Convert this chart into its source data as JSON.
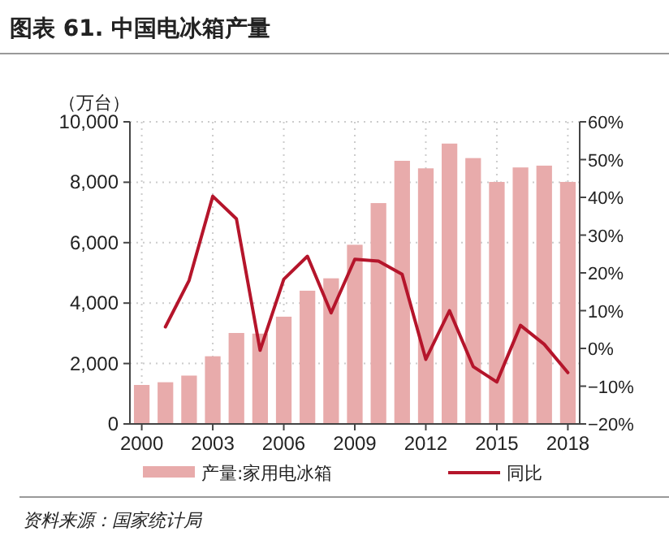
{
  "chart_data": {
    "type": "bar",
    "title": "图表 61. 中国电冰箱产量",
    "ylabel": "（万台）",
    "categories": [
      "2000",
      null,
      null,
      "2003",
      null,
      null,
      "2006",
      null,
      null,
      "2009",
      null,
      null,
      "2012",
      null,
      null,
      "2015",
      null,
      null,
      "2018"
    ],
    "series": [
      {
        "name": "产量:家用电冰箱",
        "color": "#e8abab",
        "values": [
          1290,
          1380,
          1600,
          2240,
          3010,
          2990,
          3550,
          4410,
          4820,
          5930,
          7310,
          8710,
          8460,
          9280,
          8800,
          8010,
          8490,
          8550,
          8010
        ]
      },
      {
        "name": "同比",
        "type": "line",
        "axis": "y2",
        "color": "#b5152b",
        "values": [
          null,
          5.7,
          18.0,
          40.3,
          34.3,
          -0.5,
          18.3,
          24.4,
          9.4,
          23.6,
          23.1,
          19.6,
          -2.9,
          10.0,
          -4.8,
          -8.9,
          6.1,
          1.1,
          -6.4
        ]
      }
    ],
    "ylim": [
      0,
      10000
    ],
    "yticks": [
      {
        "value": 0,
        "label": "0"
      },
      {
        "value": 2000,
        "label": "2,000"
      },
      {
        "value": 4000,
        "label": "4,000"
      },
      {
        "value": 6000,
        "label": "6,000"
      },
      {
        "value": 8000,
        "label": "8,000"
      },
      {
        "value": 10000,
        "label": "10,000"
      }
    ],
    "y2lim": [
      -20,
      60
    ],
    "y2ticks": [
      {
        "value": -20,
        "label": "−20%"
      },
      {
        "value": -10,
        "label": "−10%"
      },
      {
        "value": 0,
        "label": "0%"
      },
      {
        "value": 10,
        "label": "10%"
      },
      {
        "value": 20,
        "label": "20%"
      },
      {
        "value": 30,
        "label": "30%"
      },
      {
        "value": 40,
        "label": "40%"
      },
      {
        "value": 50,
        "label": "50%"
      },
      {
        "value": 60,
        "label": "60%"
      }
    ],
    "grid": true,
    "legend": "bottom",
    "annotations": [
      "资料来源：国家统计局"
    ]
  }
}
